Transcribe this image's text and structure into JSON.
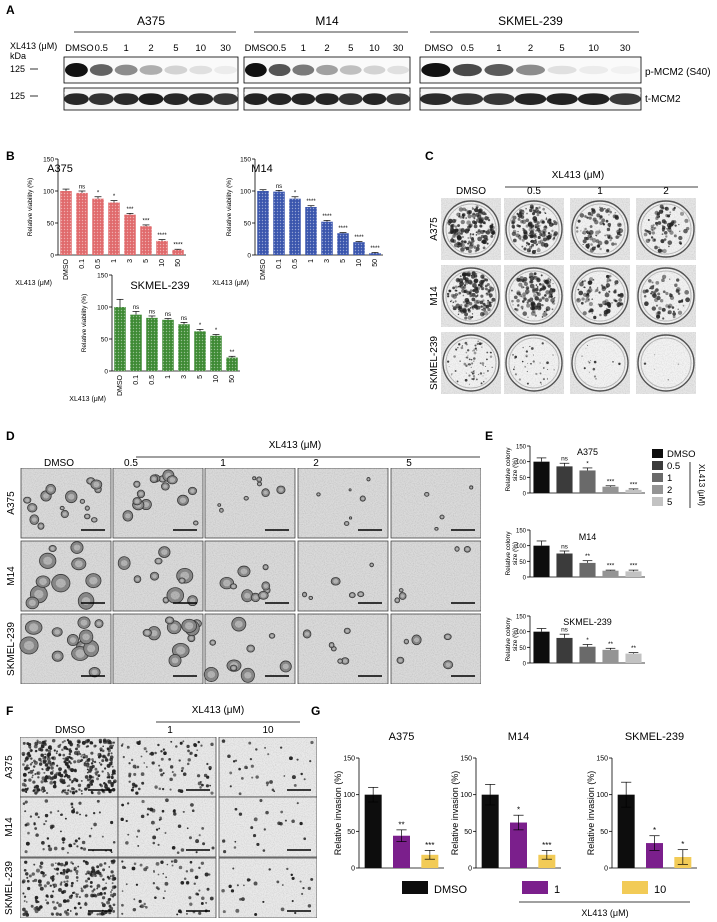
{
  "panels": {
    "A": "A",
    "B": "B",
    "C": "C",
    "D": "D",
    "E": "E",
    "F": "F",
    "G": "G"
  },
  "cell_lines": [
    "A375",
    "M14",
    "SKMEL-239"
  ],
  "drug_label": "XL413 (μM)",
  "dmso_label": "DMSO",
  "panel_a": {
    "conc_label": "XL413 (μM)",
    "kda_label": "kDa",
    "kda_markers": [
      "125",
      "125"
    ],
    "lanes": [
      "DMSO",
      "0.5",
      "1",
      "2",
      "5",
      "10",
      "30"
    ],
    "blot_labels": [
      "p-MCM2 (S40)",
      "t-MCM2"
    ],
    "p_mcm2_intensity": [
      [
        1.0,
        0.62,
        0.45,
        0.3,
        0.16,
        0.1,
        0.06
      ],
      [
        1.0,
        0.68,
        0.52,
        0.36,
        0.24,
        0.16,
        0.1
      ],
      [
        1.0,
        0.72,
        0.66,
        0.45,
        0.1,
        0.06,
        0.04
      ]
    ]
  },
  "panel_b": {
    "ylabel": "Relative viability (%)",
    "xlabel": "XL413 (μM)",
    "categories": [
      "DMSO",
      "0.1",
      "0.5",
      "1",
      "3",
      "5",
      "10",
      "50"
    ],
    "ylim": [
      0,
      150
    ],
    "yticks": [
      "0",
      "50",
      "100",
      "150"
    ]
  },
  "panel_c": {
    "columns": [
      "DMSO",
      "0.5",
      "1",
      "2"
    ]
  },
  "panel_d": {
    "columns": [
      "DMSO",
      "0.5",
      "1",
      "2",
      "5"
    ]
  },
  "panel_e": {
    "ylabel_line1": "Relative colony",
    "ylabel_line2": "size (%)",
    "ylim": [
      0,
      150
    ],
    "yticks": [
      "0",
      "50",
      "100",
      "150"
    ],
    "legend": [
      "DMSO",
      "0.5",
      "1",
      "2",
      "5"
    ],
    "legend_colors": [
      "#0d0d0d",
      "#3b3b3b",
      "#6a6a6a",
      "#949494",
      "#c2c2c2"
    ]
  },
  "panel_f": {
    "columns": [
      "DMSO",
      "1",
      "10"
    ]
  },
  "panel_g": {
    "ylabel": "Relative invasion (%)",
    "legend": [
      "DMSO",
      "1",
      "10"
    ],
    "colors": [
      "#0d0d0d",
      "#7b1f8c",
      "#f2cb57"
    ]
  },
  "chart_data": [
    {
      "type": "bar",
      "panel": "B",
      "title": "A375",
      "categories": [
        "DMSO",
        "0.1",
        "0.5",
        "1",
        "3",
        "5",
        "10",
        "50"
      ],
      "values": [
        100,
        97,
        88,
        82,
        63,
        45,
        22,
        8
      ],
      "errors": [
        3,
        3,
        3,
        3,
        2,
        2,
        2,
        1
      ],
      "significance": [
        "",
        "ns",
        "*",
        "*",
        "***",
        "***",
        "****",
        "****"
      ],
      "xlabel": "XL413 (μM)",
      "ylabel": "Relative viability (%)",
      "ylim": [
        0,
        150
      ]
    },
    {
      "type": "bar",
      "panel": "B",
      "title": "M14",
      "categories": [
        "DMSO",
        "0.1",
        "0.5",
        "1",
        "3",
        "5",
        "10",
        "50"
      ],
      "values": [
        100,
        99,
        88,
        75,
        52,
        34,
        20,
        3
      ],
      "errors": [
        2,
        2,
        3,
        2,
        2,
        1,
        1,
        1
      ],
      "significance": [
        "",
        "ns",
        "*",
        "****",
        "****",
        "****",
        "****",
        "****"
      ],
      "xlabel": "XL413 (μM)",
      "ylabel": "Relative viability (%)",
      "ylim": [
        0,
        150
      ]
    },
    {
      "type": "bar",
      "panel": "B",
      "title": "SKMEL-239",
      "categories": [
        "DMSO",
        "0.1",
        "0.5",
        "1",
        "3",
        "5",
        "10",
        "50"
      ],
      "values": [
        100,
        88,
        83,
        80,
        73,
        62,
        55,
        21
      ],
      "errors": [
        12,
        5,
        3,
        2,
        3,
        3,
        2,
        2
      ],
      "significance": [
        "",
        "ns",
        "ns",
        "ns",
        "ns",
        "*",
        "*",
        "**"
      ],
      "xlabel": "XL413 (μM)",
      "ylabel": "Relative viability (%)",
      "ylim": [
        0,
        150
      ]
    },
    {
      "type": "bar",
      "panel": "E",
      "title": "A375",
      "categories": [
        "DMSO",
        "0.5",
        "1",
        "2",
        "5"
      ],
      "values": [
        100,
        85,
        72,
        20,
        10
      ],
      "errors": [
        12,
        10,
        8,
        3,
        3
      ],
      "significance": [
        "",
        "ns",
        "*",
        "***",
        "***"
      ],
      "ylabel": "Relative colony size (%)",
      "ylim": [
        0,
        150
      ]
    },
    {
      "type": "bar",
      "panel": "E",
      "title": "M14",
      "categories": [
        "DMSO",
        "0.5",
        "1",
        "2",
        "5"
      ],
      "values": [
        100,
        75,
        45,
        20,
        18
      ],
      "errors": [
        15,
        8,
        7,
        2,
        4
      ],
      "significance": [
        "",
        "ns",
        "**",
        "***",
        "***"
      ],
      "ylabel": "Relative colony size (%)",
      "ylim": [
        0,
        150
      ]
    },
    {
      "type": "bar",
      "panel": "E",
      "title": "SKMEL-239",
      "categories": [
        "DMSO",
        "0.5",
        "1",
        "2",
        "5"
      ],
      "values": [
        100,
        80,
        52,
        42,
        30
      ],
      "errors": [
        10,
        12,
        7,
        5,
        3
      ],
      "significance": [
        "",
        "ns",
        "*",
        "**",
        "**"
      ],
      "ylabel": "Relative colony size (%)",
      "ylim": [
        0,
        150
      ]
    },
    {
      "type": "bar",
      "panel": "G",
      "title": "A375",
      "categories": [
        "DMSO",
        "1",
        "10"
      ],
      "values": [
        100,
        44,
        18
      ],
      "errors": [
        10,
        8,
        6
      ],
      "significance": [
        "",
        "**",
        "***"
      ],
      "ylabel": "Relative invasion (%)",
      "ylim": [
        0,
        150
      ]
    },
    {
      "type": "bar",
      "panel": "G",
      "title": "M14",
      "categories": [
        "DMSO",
        "1",
        "10"
      ],
      "values": [
        100,
        62,
        18
      ],
      "errors": [
        14,
        10,
        6
      ],
      "significance": [
        "",
        "*",
        "***"
      ],
      "ylabel": "Relative invasion (%)",
      "ylim": [
        0,
        150
      ]
    },
    {
      "type": "bar",
      "panel": "G",
      "title": "SKMEL-239",
      "categories": [
        "DMSO",
        "1",
        "10"
      ],
      "values": [
        100,
        34,
        15
      ],
      "errors": [
        17,
        10,
        10
      ],
      "significance": [
        "",
        "*",
        "*"
      ],
      "ylabel": "Relative invasion (%)",
      "ylim": [
        0,
        150
      ]
    }
  ]
}
